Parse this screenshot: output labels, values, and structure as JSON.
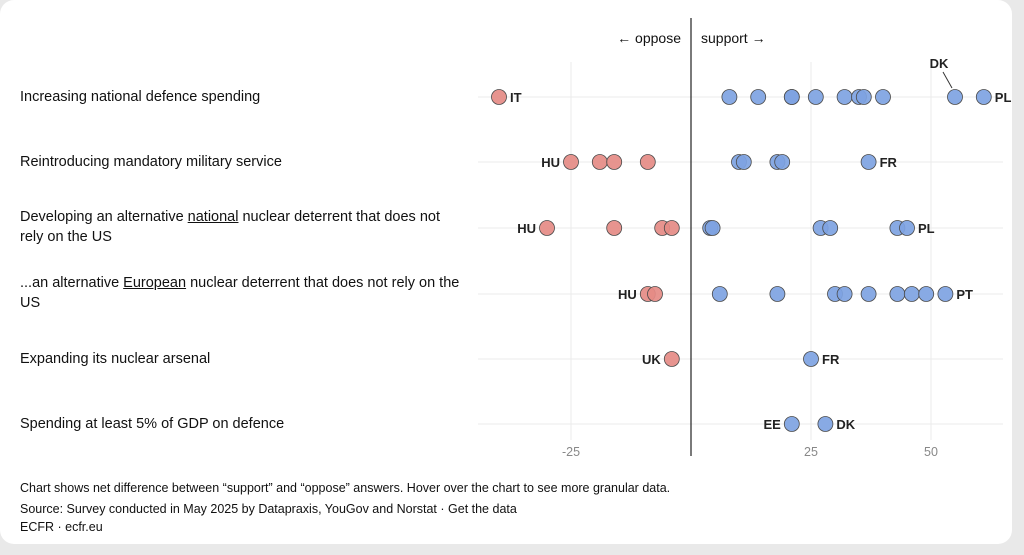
{
  "chart_data": {
    "type": "scatter",
    "direction_labels": {
      "oppose": "← oppose",
      "support": "support →"
    },
    "x_ticks": [
      -25,
      25,
      50
    ],
    "xlim": [
      -45,
      65
    ],
    "colors": {
      "oppose": "#e58b86",
      "support": "#7ea3e2"
    },
    "rows": [
      {
        "label_parts": [
          "Increasing national defence spending"
        ],
        "points": [
          -40,
          8,
          14,
          21,
          21,
          26,
          32,
          35,
          36,
          40,
          55,
          61
        ],
        "labels": [
          {
            "text": "IT",
            "x": -40,
            "side": "right"
          },
          {
            "text": "PL",
            "x": 61,
            "side": "right"
          },
          {
            "text": "DK",
            "x": 55,
            "side": "above"
          }
        ]
      },
      {
        "label_parts": [
          "Reintroducing mandatory military service"
        ],
        "points": [
          -25,
          -19,
          -16,
          -9,
          10,
          11,
          18,
          19,
          37
        ],
        "labels": [
          {
            "text": "HU",
            "x": -25,
            "side": "left"
          },
          {
            "text": "FR",
            "x": 37,
            "side": "right"
          }
        ]
      },
      {
        "label_parts": [
          "Developing an alternative ",
          "national",
          " nuclear deterrent that does not rely on the US"
        ],
        "points": [
          -30,
          -16,
          -6,
          -4,
          4,
          4.5,
          27,
          29,
          43,
          45
        ],
        "labels": [
          {
            "text": "HU",
            "x": -30,
            "side": "left"
          },
          {
            "text": "PL",
            "x": 45,
            "side": "right"
          }
        ]
      },
      {
        "label_parts": [
          "...an alternative ",
          "European",
          " nuclear deterrent that does not rely on the US"
        ],
        "points": [
          -9,
          -7.5,
          6,
          18,
          30,
          32,
          37,
          43,
          46,
          49,
          53
        ],
        "labels": [
          {
            "text": "HU",
            "x": -9,
            "side": "left"
          },
          {
            "text": "PT",
            "x": 53,
            "side": "right"
          }
        ]
      },
      {
        "label_parts": [
          "Expanding its nuclear arsenal"
        ],
        "points": [
          -4,
          25
        ],
        "labels": [
          {
            "text": "UK",
            "x": -4,
            "side": "left"
          },
          {
            "text": "FR",
            "x": 25,
            "side": "right"
          }
        ]
      },
      {
        "label_parts": [
          "Spending at least 5% of GDP on defence"
        ],
        "points": [
          21,
          28
        ],
        "labels": [
          {
            "text": "EE",
            "x": 21,
            "side": "left"
          },
          {
            "text": "DK",
            "x": 28,
            "side": "right"
          }
        ]
      }
    ]
  },
  "footer": {
    "note": "Chart shows net difference between “support” and “oppose” answers. Hover over the chart to see more granular data.",
    "source_prefix": "Source: Survey conducted in May 2025 by Datapraxis, YouGov and Norstat · ",
    "get_data_link": "Get the data",
    "credit": "ECFR · ecfr.eu"
  }
}
